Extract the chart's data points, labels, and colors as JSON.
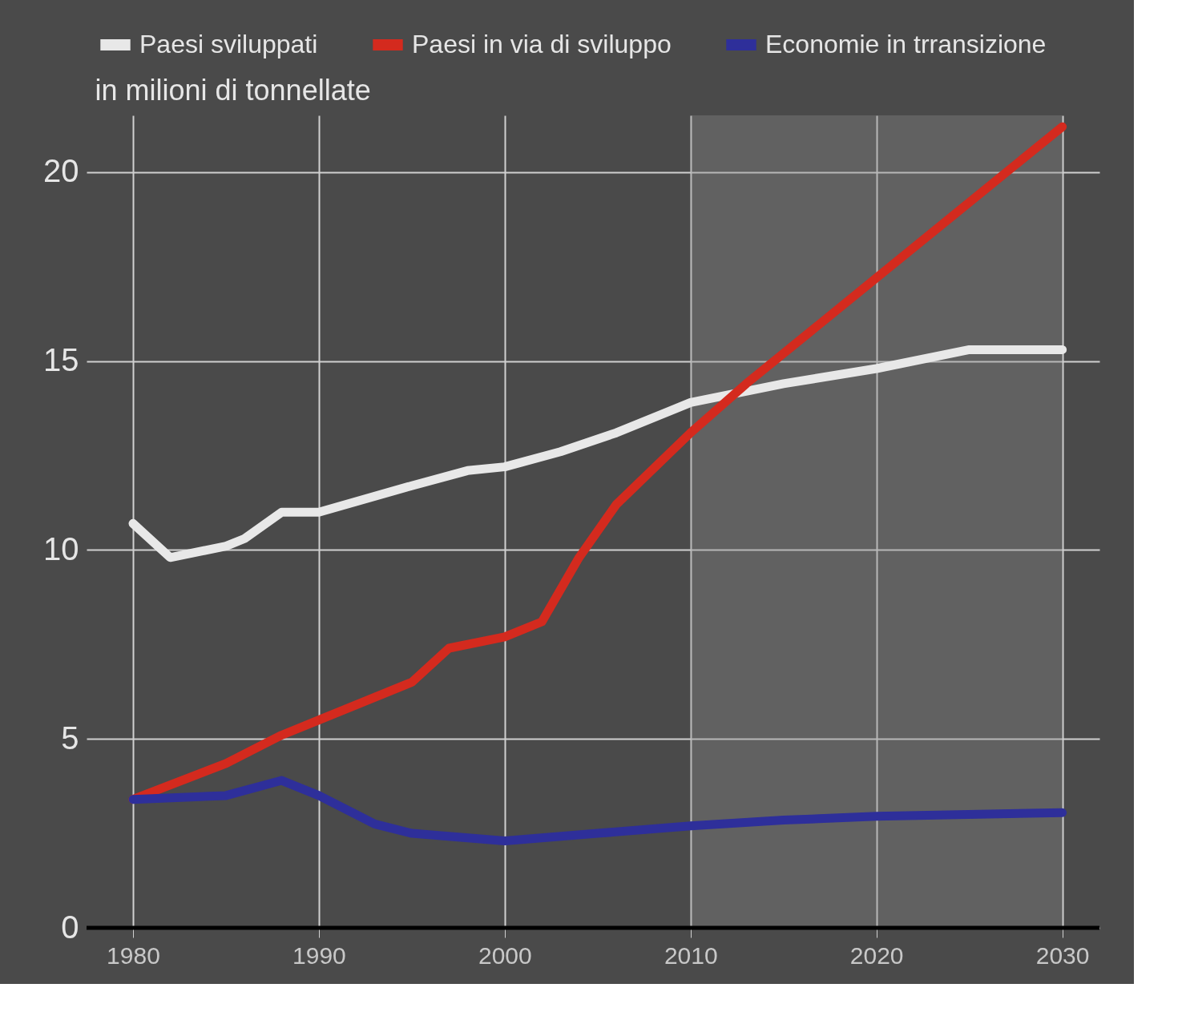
{
  "chart_data": {
    "type": "line",
    "ylabel": "in milioni di tonnellate",
    "xlim": [
      1977.5,
      2032
    ],
    "xticks": [
      1980,
      1990,
      2000,
      2010,
      2020,
      2030
    ],
    "ylim": [
      0,
      21.5
    ],
    "yticks": [
      0,
      5,
      10,
      15,
      20
    ],
    "grid": true,
    "legend": "top",
    "line_style": "solid",
    "marker": "none",
    "bands": [
      {
        "axis": "x",
        "from": 2010,
        "to": 2030,
        "color": "#8c8c8c"
      }
    ],
    "series": [
      {
        "name": "Paesi sviluppati",
        "color": "#e8e8e8",
        "x": [
          1980,
          1982,
          1985,
          1986,
          1988,
          1990,
          1995,
          1998,
          2000,
          2003,
          2006,
          2010,
          2015,
          2020,
          2025,
          2030
        ],
        "values": [
          10.7,
          9.8,
          10.1,
          10.3,
          11.0,
          11.0,
          11.7,
          12.1,
          12.2,
          12.6,
          13.1,
          13.9,
          14.4,
          14.8,
          15.3,
          15.3
        ]
      },
      {
        "name": "Paesi in via di sviluppo",
        "color": "#d42a1e",
        "x": [
          1980,
          1985,
          1988,
          1990,
          1995,
          1997,
          2000,
          2002,
          2004,
          2006,
          2010,
          2013,
          2020,
          2025,
          2030
        ],
        "values": [
          3.4,
          4.35,
          5.1,
          5.5,
          6.5,
          7.4,
          7.7,
          8.1,
          9.8,
          11.2,
          13.1,
          14.4,
          17.2,
          19.2,
          21.2
        ]
      },
      {
        "name": "Economie in trransizione",
        "color": "#2e2f9a",
        "x": [
          1980,
          1985,
          1988,
          1990,
          1993,
          1995,
          2000,
          2005,
          2010,
          2015,
          2020,
          2030
        ],
        "values": [
          3.4,
          3.5,
          3.9,
          3.5,
          2.75,
          2.5,
          2.3,
          2.5,
          2.7,
          2.85,
          2.95,
          3.05
        ]
      }
    ]
  }
}
